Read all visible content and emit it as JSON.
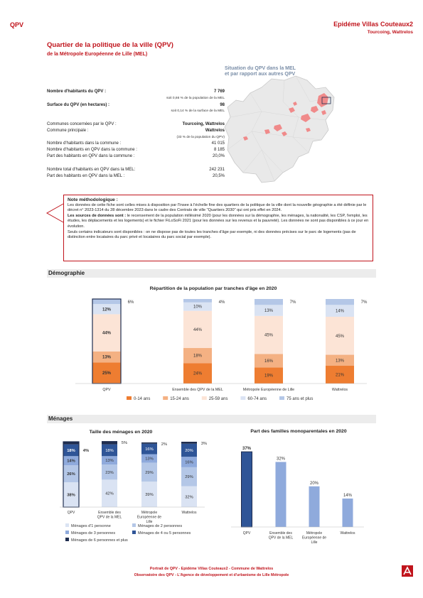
{
  "header": {
    "left": "QPV",
    "right": "Epidéme Villas Couteaux2",
    "right_sub": "Tourcoing, Wattrelos"
  },
  "title": "Quartier de la politique de la ville (QPV)",
  "subtitle": "de la Métropole Européenne de Lille (MEL)",
  "info": {
    "hab_label": "Nombre d'habitants du QPV :",
    "hab_value": "7 769",
    "hab_note": "soit 0,66 % de la population de la MEL",
    "surf_label": "Surface du QPV (en hectares) :",
    "surf_value": "98",
    "surf_note": "soit 0,14 % de la surface de la MEL",
    "communes_label": "Communes concernées par le QPV :",
    "communes_value": "Tourcoing, Wattrelos",
    "principale_label": "Commune principale :",
    "principale_value": "Wattrelos",
    "principale_note": "(33 % de la population du QPV)",
    "hab_commune_label": "Nombre d'habitants dans la commune :",
    "hab_commune_value": "41 015",
    "hab_qpv_commune_label": "Nombre d'habitants en QPV dans la commune :",
    "hab_qpv_commune_value": "8 185",
    "part_commune_label": "Part des habitants en QPV dans la commune :",
    "part_commune_value": "20,0%",
    "total_mel_label": "Nombre total d'habitants en QPV dans la MEL:",
    "total_mel_value": "242 231",
    "part_mel_label": "Part des habitants en QPV dans la MEL :",
    "part_mel_value": "20,5%"
  },
  "map": {
    "title_line1": "Situation du QPV dans la MEL",
    "title_line2": "et par rapport aux autres QPV"
  },
  "note": {
    "title": "Note méthodologique :",
    "p1": "Les données de cette fiche sont celles mises à disposition par l'Insee à l'échelle fine des quartiers de la politique de la ville dont la nouvelle géographie a été définie par le décret n° 2023-1314 du 28 décembre 2023 dans le cadre des Contrats de ville \"Quartiers 2030\" qui ont pris effet en 2024.",
    "p2_bold": "Les sources de données sont :",
    "p2": " le recensement de la population millésimé 2020 (pour les données sur la démographie, les ménages, la nationalité, les CSP, l'emploi, les études, les déplacements et les logements) et le fichier FiLoSoFi 2021 (pour les données sur les revenus et la pauvreté). Les données ne sont pas disponibles à ce jour en évolution.",
    "p3": "Seuls certains indicateurs sont disponibles : on ne dispose pas de toutes les tranches d'âge par exemple, ni des données précises sur le parc de logements (pas de distinction entre locataires du parc privé et locataires du parc social par exemple)."
  },
  "sections": {
    "demo": "Démographie",
    "menages": "Ménages"
  },
  "chart_data": [
    {
      "type": "bar",
      "stacked": true,
      "title": "Répartition de la population par tranches d'âge en 2020",
      "categories": [
        "QPV",
        "Ensemble des QPV de la MEL",
        "Métropole Européenne de Lille",
        "Wattrelos"
      ],
      "series": [
        {
          "name": "0-14 ans",
          "values": [
            25,
            24,
            19,
            21
          ],
          "color": "#ee7d31"
        },
        {
          "name": "15-24 ans",
          "values": [
            13,
            18,
            16,
            13
          ],
          "color": "#f4b183"
        },
        {
          "name": "25-59 ans",
          "values": [
            44,
            44,
            45,
            45
          ],
          "color": "#fce4d6"
        },
        {
          "name": "60-74 ans",
          "values": [
            12,
            10,
            13,
            14
          ],
          "color": "#dae3f3"
        },
        {
          "name": "75 ans et plus",
          "values": [
            6,
            4,
            7,
            7
          ],
          "color": "#b4c7e7"
        }
      ],
      "labels": [
        [
          "25%",
          "24%",
          "19%",
          "21%"
        ],
        [
          "13%",
          "18%",
          "16%",
          "13%"
        ],
        [
          "44%",
          "44%",
          "45%",
          "45%"
        ],
        [
          "12%",
          "10%",
          "13%",
          "14%"
        ],
        [
          "6%",
          "4%",
          "7%",
          "7%"
        ]
      ],
      "ylim": [
        0,
        100
      ]
    },
    {
      "type": "bar",
      "stacked": true,
      "title": "Taille des ménages en 2020",
      "categories": [
        "QPV",
        "Ensemble des QPV de la MEL",
        "Métropole Européenne de Lille",
        "Wattrelos"
      ],
      "series": [
        {
          "name": "Ménages d'1 personne",
          "values": [
            38,
            42,
            39,
            32
          ],
          "color": "#dae3f3"
        },
        {
          "name": "Ménages de 2 personnes",
          "values": [
            26,
            23,
            29,
            29
          ],
          "color": "#b4c7e7"
        },
        {
          "name": "Ménages de 3 personnes",
          "values": [
            14,
            13,
            13,
            16
          ],
          "color": "#8faadc"
        },
        {
          "name": "Ménages de 4 ou 5 personnes",
          "values": [
            18,
            18,
            16,
            20
          ],
          "color": "#2f5597"
        },
        {
          "name": "Ménages de 6 personnes et plus",
          "values": [
            4,
            5,
            2,
            3
          ],
          "color": "#1f2d4f"
        }
      ],
      "labels": [
        [
          "38%",
          "42%",
          "39%",
          "32%"
        ],
        [
          "26%",
          "23%",
          "29%",
          "29%"
        ],
        [
          "14%",
          "13%",
          "13%",
          "16%"
        ],
        [
          "18%",
          "18%",
          "16%",
          "20%"
        ],
        [
          "4%",
          "5%",
          "2%",
          "3%"
        ]
      ],
      "ylim": [
        0,
        100
      ]
    },
    {
      "type": "bar",
      "title": "Part des familles monoparentales en 2020",
      "categories": [
        "QPV",
        "Ensemble des QPV de la MEL",
        "Métropole Européenne de Lille",
        "Wattrelos"
      ],
      "values": [
        37,
        32,
        20,
        14
      ],
      "labels": [
        "37%",
        "32%",
        "20%",
        "14%"
      ],
      "colors": [
        "#2f5597",
        "#8faadc",
        "#8faadc",
        "#8faadc"
      ],
      "ylim": [
        0,
        40
      ]
    }
  ],
  "footer": {
    "line1": "Portrait de QPV - Epidéme Villas Couteaux2 - Commune de Wattrelos",
    "line2": "Observatoire des QPV - L'Agence de développement et d'urbanisme de Lille Métropole"
  }
}
